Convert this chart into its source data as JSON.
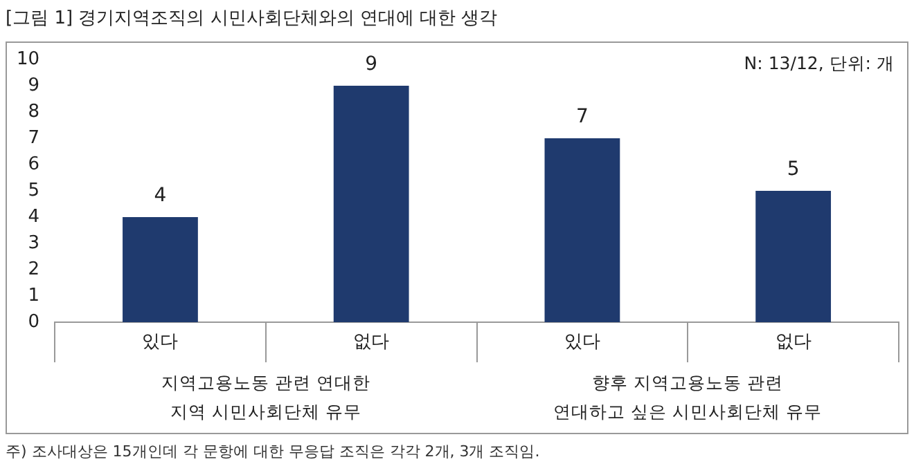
{
  "chart_data": {
    "type": "bar",
    "title": "[그림 1] 경기지역조직의 시민사회단체와의 연대에 대한 생각",
    "categories": [
      "있다",
      "없다",
      "있다",
      "없다"
    ],
    "values": [
      4,
      9,
      7,
      5
    ],
    "color": "#1f3a6e",
    "ylim": [
      0,
      10
    ],
    "yticks": [
      0,
      1,
      2,
      3,
      4,
      5,
      6,
      7,
      8,
      9,
      10
    ],
    "grid": false,
    "legend": false,
    "data_labels": true,
    "annotations": [
      "N: 13/12, 단위: 개",
      "지역고용노동 관련 연대한\n지역 시민사회단체 유무",
      "향후 지역고용노동 관련\n연대하고 싶은 시민사회단체 유무",
      "주) 조사대상은 15개인데 각 문항에 대한 무응답 조직은 각각 2개, 3개 조직임."
    ]
  }
}
